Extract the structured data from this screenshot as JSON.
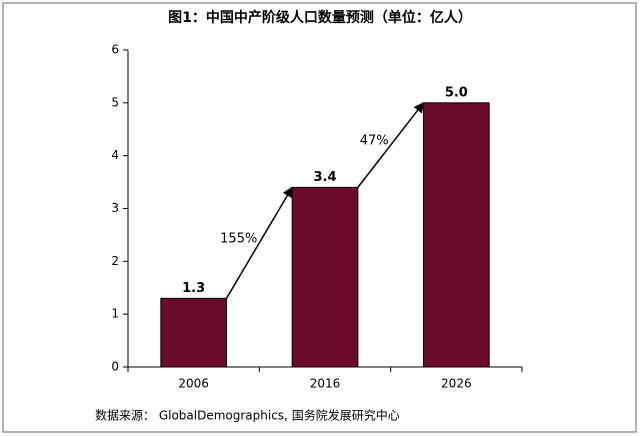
{
  "chart_data": {
    "type": "bar",
    "title": "图1：中国中产阶级人口数量预测（单位：亿人）",
    "categories": [
      "2006",
      "2016",
      "2026"
    ],
    "values": [
      1.3,
      3.4,
      5.0
    ],
    "value_labels": [
      "1.3",
      "3.4",
      "5.0"
    ],
    "color": "#6b0a2c",
    "ylim": [
      0,
      6
    ],
    "yticks": [
      0,
      1,
      2,
      3,
      4,
      5,
      6
    ],
    "annotations": [
      "155%",
      "47%"
    ],
    "source": "数据来源： GlobalDemographics, 国务院发展研究中心"
  }
}
